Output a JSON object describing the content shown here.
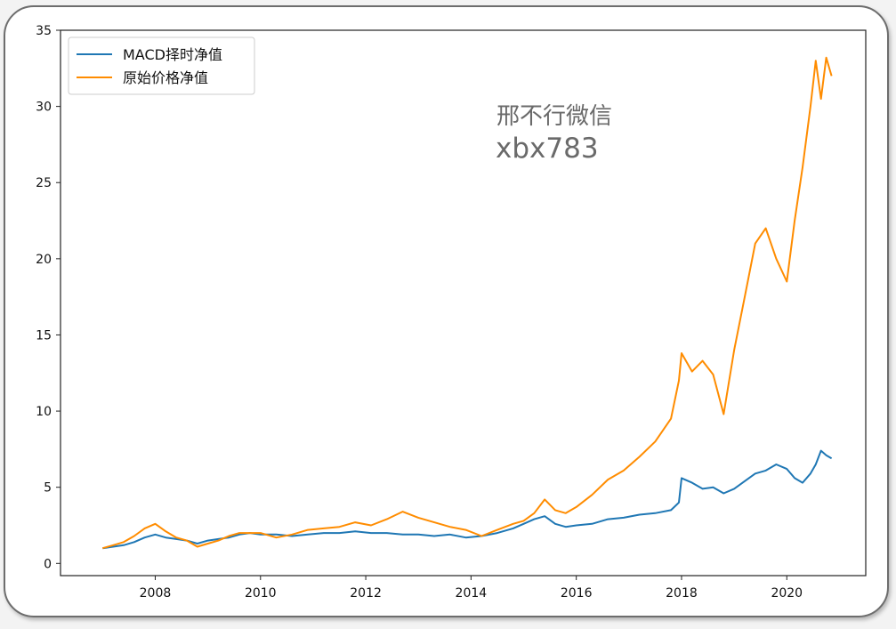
{
  "chart_data": {
    "type": "line",
    "title": "",
    "xlabel": "",
    "ylabel": "",
    "xlim": [
      2006.2,
      2021.5
    ],
    "ylim": [
      -0.8,
      35.0
    ],
    "x_ticks": [
      2008,
      2010,
      2012,
      2014,
      2016,
      2018,
      2020
    ],
    "x_tick_labels": [
      "2008",
      "2010",
      "2012",
      "2014",
      "2016",
      "2018",
      "2020"
    ],
    "y_ticks": [
      0,
      5,
      10,
      15,
      20,
      25,
      30,
      35
    ],
    "y_tick_labels": [
      "0",
      "5",
      "10",
      "15",
      "20",
      "25",
      "30",
      "35"
    ],
    "grid": false,
    "legend_position": "top-left",
    "series": [
      {
        "name": "MACD择时净值",
        "color": "#1f77b4",
        "x": [
          2007.0,
          2007.2,
          2007.4,
          2007.6,
          2007.8,
          2008.0,
          2008.2,
          2008.4,
          2008.6,
          2008.8,
          2009.0,
          2009.2,
          2009.4,
          2009.6,
          2009.8,
          2010.0,
          2010.3,
          2010.6,
          2010.9,
          2011.2,
          2011.5,
          2011.8,
          2012.1,
          2012.4,
          2012.7,
          2013.0,
          2013.3,
          2013.6,
          2013.9,
          2014.2,
          2014.5,
          2014.8,
          2015.0,
          2015.2,
          2015.4,
          2015.6,
          2015.8,
          2016.0,
          2016.3,
          2016.6,
          2016.9,
          2017.2,
          2017.5,
          2017.8,
          2017.95,
          2018.0,
          2018.2,
          2018.4,
          2018.6,
          2018.8,
          2019.0,
          2019.2,
          2019.4,
          2019.6,
          2019.8,
          2020.0,
          2020.15,
          2020.3,
          2020.45,
          2020.55,
          2020.65,
          2020.75,
          2020.85
        ],
        "y": [
          1.0,
          1.1,
          1.2,
          1.4,
          1.7,
          1.9,
          1.7,
          1.6,
          1.5,
          1.3,
          1.5,
          1.6,
          1.7,
          1.9,
          2.0,
          1.9,
          1.9,
          1.8,
          1.9,
          2.0,
          2.0,
          2.1,
          2.0,
          2.0,
          1.9,
          1.9,
          1.8,
          1.9,
          1.7,
          1.8,
          2.0,
          2.3,
          2.6,
          2.9,
          3.1,
          2.6,
          2.4,
          2.5,
          2.6,
          2.9,
          3.0,
          3.2,
          3.3,
          3.5,
          4.0,
          5.6,
          5.3,
          4.9,
          5.0,
          4.6,
          4.9,
          5.4,
          5.9,
          6.1,
          6.5,
          6.2,
          5.6,
          5.3,
          5.9,
          6.5,
          7.4,
          7.1,
          6.9
        ]
      },
      {
        "name": "原始价格净值",
        "color": "#ff8c00",
        "x": [
          2007.0,
          2007.2,
          2007.4,
          2007.6,
          2007.8,
          2008.0,
          2008.2,
          2008.4,
          2008.6,
          2008.8,
          2009.0,
          2009.2,
          2009.4,
          2009.6,
          2009.8,
          2010.0,
          2010.3,
          2010.6,
          2010.9,
          2011.2,
          2011.5,
          2011.8,
          2012.1,
          2012.4,
          2012.7,
          2013.0,
          2013.3,
          2013.6,
          2013.9,
          2014.2,
          2014.5,
          2014.8,
          2015.0,
          2015.2,
          2015.4,
          2015.6,
          2015.8,
          2016.0,
          2016.3,
          2016.6,
          2016.9,
          2017.2,
          2017.5,
          2017.8,
          2017.95,
          2018.0,
          2018.2,
          2018.4,
          2018.6,
          2018.8,
          2019.0,
          2019.2,
          2019.4,
          2019.6,
          2019.8,
          2020.0,
          2020.15,
          2020.3,
          2020.45,
          2020.55,
          2020.65,
          2020.75,
          2020.85
        ],
        "y": [
          1.0,
          1.2,
          1.4,
          1.8,
          2.3,
          2.6,
          2.1,
          1.7,
          1.5,
          1.1,
          1.3,
          1.5,
          1.8,
          2.0,
          2.0,
          2.0,
          1.7,
          1.9,
          2.2,
          2.3,
          2.4,
          2.7,
          2.5,
          2.9,
          3.4,
          3.0,
          2.7,
          2.4,
          2.2,
          1.8,
          2.2,
          2.6,
          2.8,
          3.3,
          4.2,
          3.5,
          3.3,
          3.7,
          4.5,
          5.5,
          6.1,
          7.0,
          8.0,
          9.5,
          12.0,
          13.8,
          12.6,
          13.3,
          12.4,
          9.8,
          14.0,
          17.5,
          21.0,
          22.0,
          20.0,
          18.5,
          22.5,
          26.0,
          30.0,
          33.0,
          30.5,
          33.2,
          32.0
        ]
      }
    ]
  },
  "watermark": {
    "line1": "邢不行微信",
    "line2": "xbx783"
  }
}
